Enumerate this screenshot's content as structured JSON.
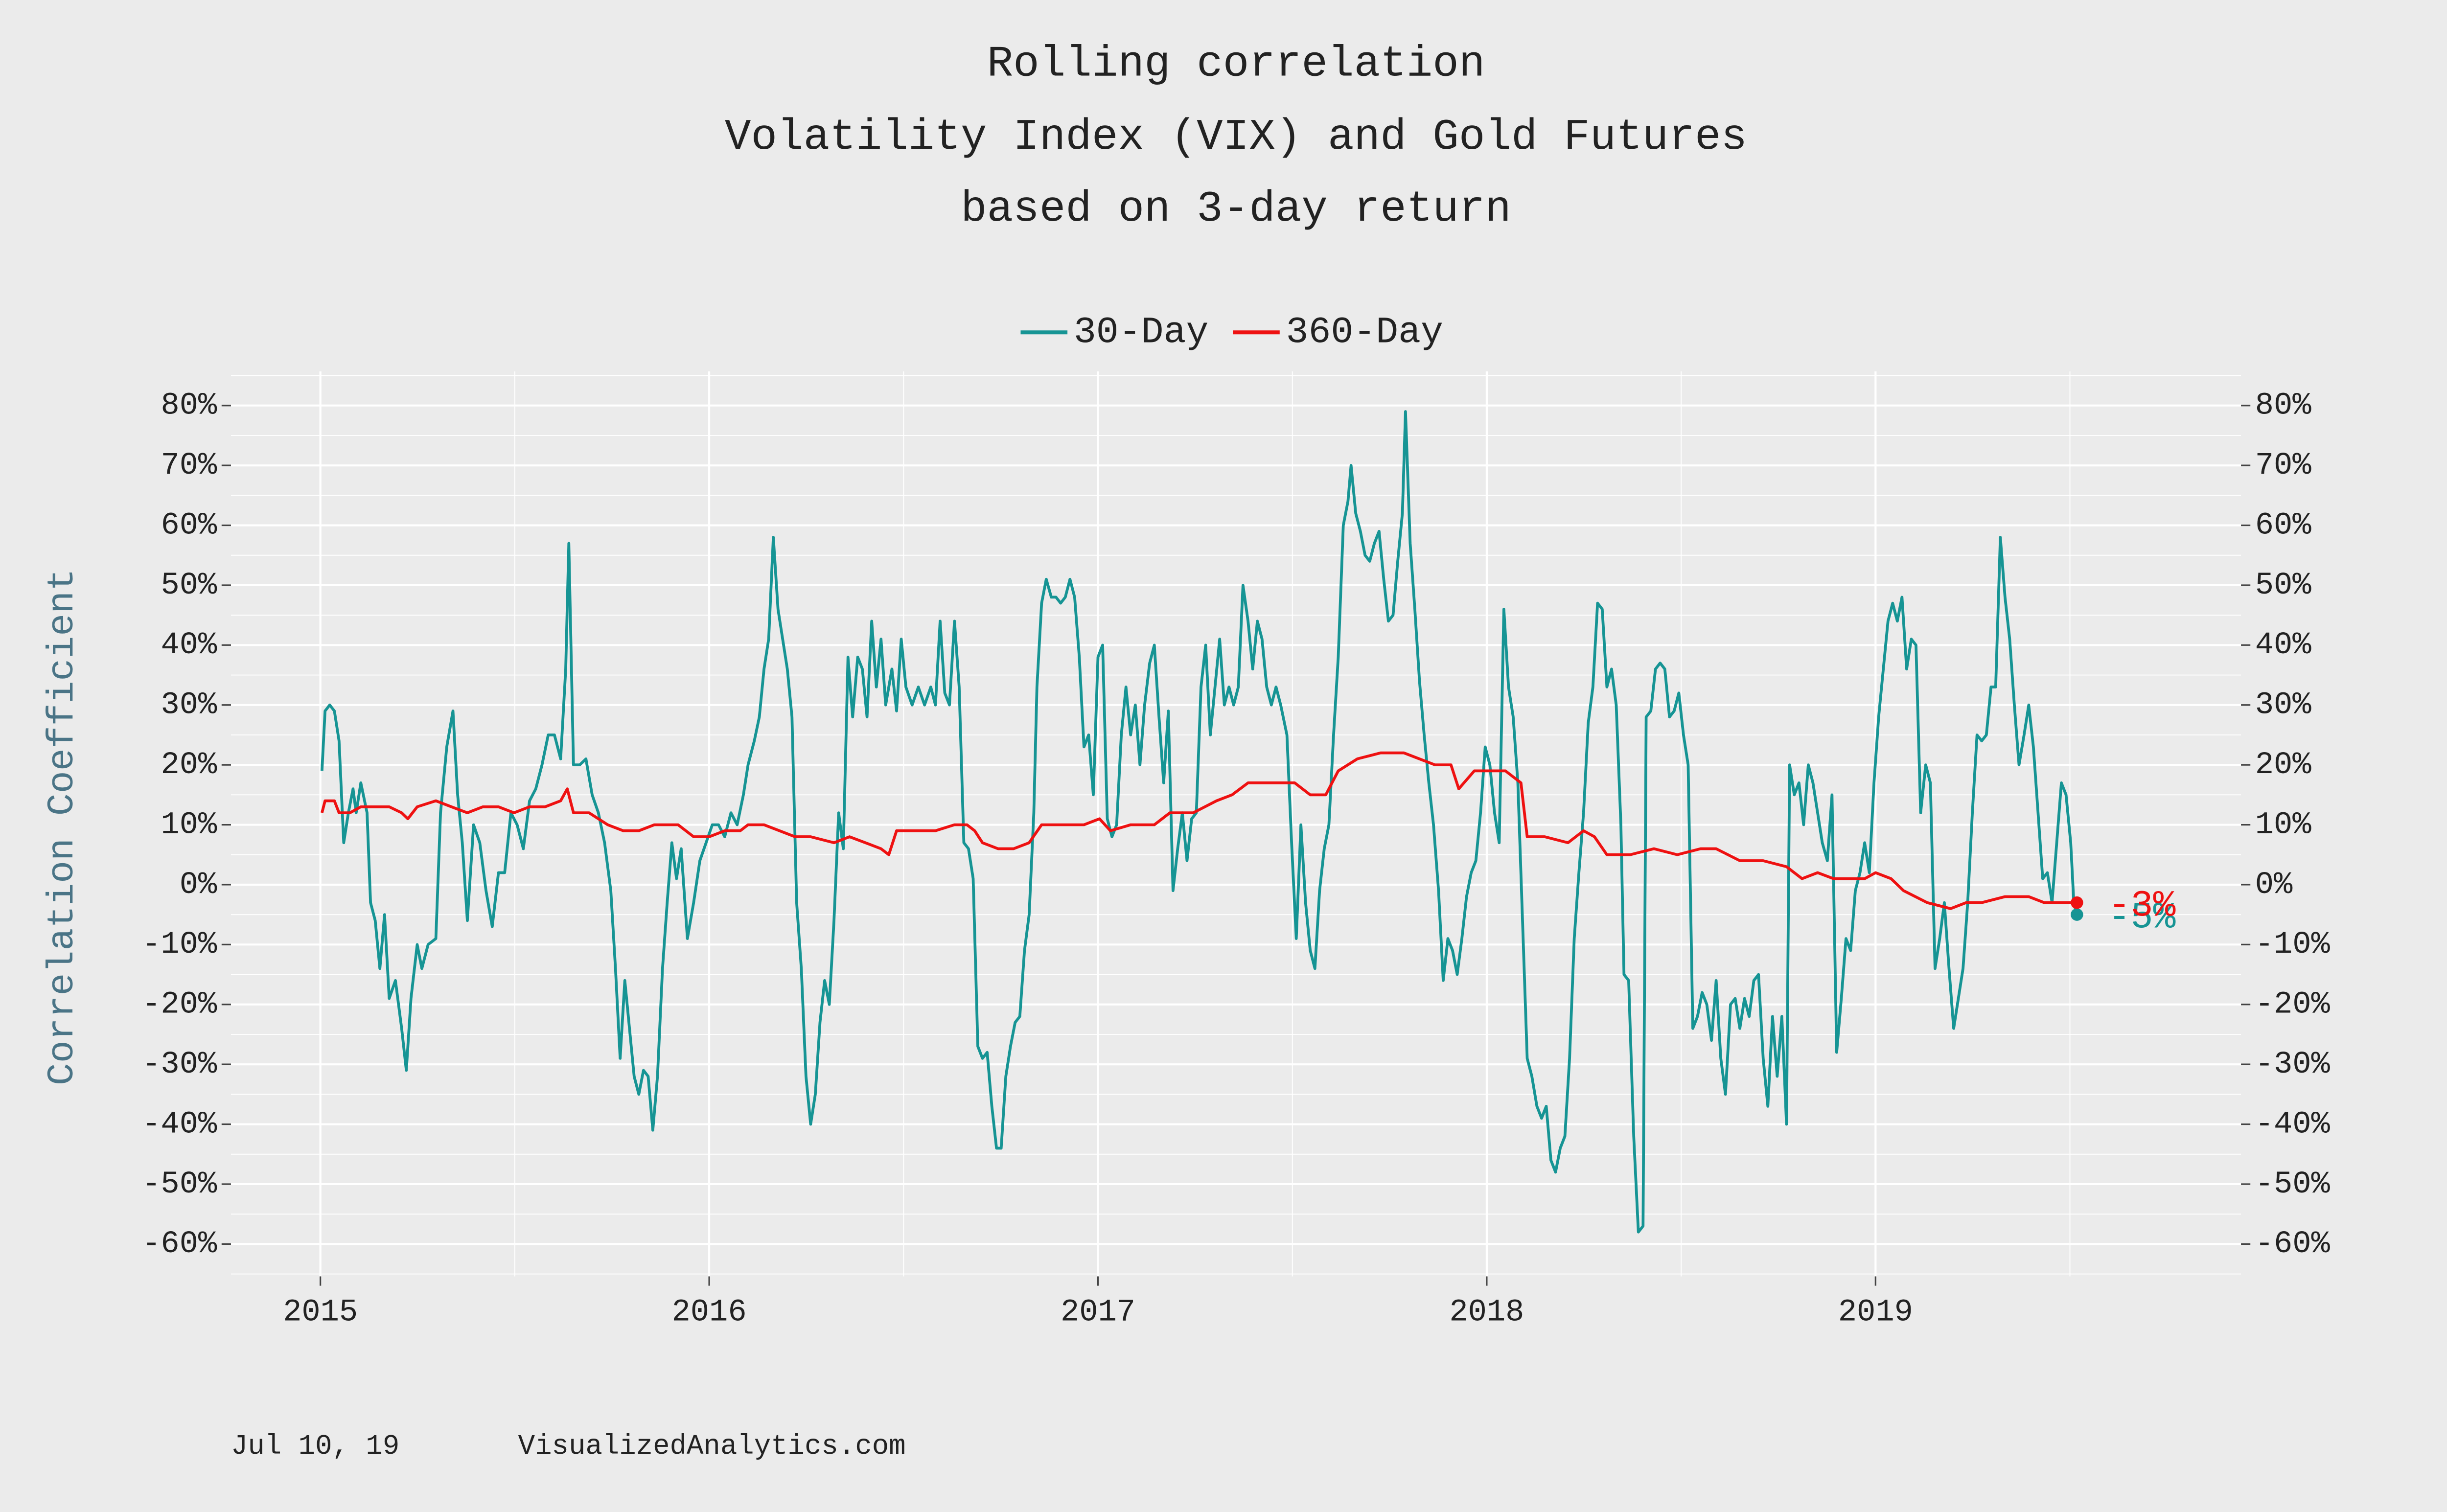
{
  "chart_data": {
    "type": "line",
    "title": [
      "Rolling correlation",
      "Volatility Index (VIX) and Gold Futures",
      "based on 3-day return"
    ],
    "y_label": "Correlation Coefficient",
    "caption": [
      "Jul 10, 19",
      "VisualizedAnalytics.com"
    ],
    "xlim": [
      2014.77,
      2019.94
    ],
    "xticks": [
      2015,
      2016,
      2017,
      2018,
      2019
    ],
    "x_minor_ticks": [
      2015.5,
      2016.5,
      2017.5,
      2018.5,
      2019.5
    ],
    "ylim": [
      -65.4,
      85.7
    ],
    "yticks": [
      {
        "value": -60,
        "label": "-60%"
      },
      {
        "value": -50,
        "label": "-50%"
      },
      {
        "value": -40,
        "label": "-40%"
      },
      {
        "value": -30,
        "label": "-30%"
      },
      {
        "value": -20,
        "label": "-20%"
      },
      {
        "value": -10,
        "label": "-10%"
      },
      {
        "value": 0,
        "label": "0%"
      },
      {
        "value": 10,
        "label": "10%"
      },
      {
        "value": 20,
        "label": "20%"
      },
      {
        "value": 30,
        "label": "30%"
      },
      {
        "value": 40,
        "label": "40%"
      },
      {
        "value": 50,
        "label": "50%"
      },
      {
        "value": 60,
        "label": "60%"
      },
      {
        "value": 70,
        "label": "70%"
      },
      {
        "value": 80,
        "label": "80%"
      }
    ],
    "y_minor_ticks": [
      -65,
      -55,
      -45,
      -35,
      -25,
      -15,
      -5,
      5,
      15,
      25,
      35,
      45,
      55,
      65,
      75,
      85
    ],
    "y2lim": [
      -65.4,
      85.7
    ],
    "y2ticks": [
      {
        "value": -60,
        "label": "-60%"
      },
      {
        "value": -50,
        "label": "-50%"
      },
      {
        "value": -40,
        "label": "-40%"
      },
      {
        "value": -30,
        "label": "-30%"
      },
      {
        "value": -20,
        "label": "-20%"
      },
      {
        "value": -10,
        "label": "-10%"
      },
      {
        "value": 0,
        "label": "0%"
      },
      {
        "value": 10,
        "label": "10%"
      },
      {
        "value": 20,
        "label": "20%"
      },
      {
        "value": 30,
        "label": "30%"
      },
      {
        "value": 40,
        "label": "40%"
      },
      {
        "value": 50,
        "label": "50%"
      },
      {
        "value": 60,
        "label": "60%"
      },
      {
        "value": 70,
        "label": "70%"
      },
      {
        "value": 80,
        "label": "80%"
      }
    ],
    "grid": true,
    "legend": "top",
    "series": [
      {
        "name": "30-Day",
        "color": "#169494",
        "end_label": "-5%",
        "x": [
          2015.004,
          2015.012,
          2015.024,
          2015.036,
          2015.048,
          2015.06,
          2015.072,
          2015.084,
          2015.092,
          2015.104,
          2015.12,
          2015.129,
          2015.141,
          2015.153,
          2015.165,
          2015.177,
          2015.193,
          2015.209,
          2015.221,
          2015.233,
          2015.249,
          2015.261,
          2015.277,
          2015.297,
          2015.309,
          2015.325,
          2015.341,
          2015.353,
          2015.365,
          2015.378,
          2015.394,
          2015.41,
          2015.426,
          2015.442,
          2015.458,
          2015.474,
          2015.49,
          2015.506,
          2015.522,
          2015.538,
          2015.554,
          2015.57,
          2015.586,
          2015.602,
          2015.618,
          2015.631,
          2015.639,
          2015.651,
          2015.667,
          2015.683,
          2015.699,
          2015.715,
          2015.731,
          2015.747,
          2015.759,
          2015.771,
          2015.783,
          2015.795,
          2015.807,
          2015.819,
          2015.831,
          2015.843,
          2015.855,
          2015.867,
          2015.88,
          2015.892,
          2015.904,
          2015.916,
          2015.928,
          2015.944,
          2015.96,
          2015.976,
          2015.992,
          2016.008,
          2016.024,
          2016.04,
          2016.056,
          2016.072,
          2016.088,
          2016.1,
          2016.116,
          2016.129,
          2016.141,
          2016.153,
          2016.165,
          2016.177,
          2016.189,
          2016.201,
          2016.213,
          2016.225,
          2016.237,
          2016.249,
          2016.261,
          2016.273,
          2016.285,
          2016.297,
          2016.309,
          2016.321,
          2016.333,
          2016.345,
          2016.357,
          2016.369,
          2016.382,
          2016.394,
          2016.406,
          2016.418,
          2016.43,
          2016.442,
          2016.454,
          2016.47,
          2016.482,
          2016.494,
          2016.506,
          2016.522,
          2016.538,
          2016.554,
          2016.57,
          2016.582,
          2016.594,
          2016.606,
          2016.618,
          2016.631,
          2016.643,
          2016.655,
          2016.667,
          2016.679,
          2016.691,
          2016.703,
          2016.715,
          2016.727,
          2016.739,
          2016.751,
          2016.763,
          2016.775,
          2016.787,
          2016.799,
          2016.811,
          2016.823,
          2016.835,
          2016.843,
          2016.855,
          2016.867,
          2016.88,
          2016.892,
          2016.904,
          2016.916,
          2016.928,
          2016.94,
          2016.952,
          2016.964,
          2016.976,
          2016.988,
          2017.0,
          2017.012,
          2017.024,
          2017.036,
          2017.048,
          2017.06,
          2017.072,
          2017.084,
          2017.096,
          2017.108,
          2017.12,
          2017.133,
          2017.145,
          2017.157,
          2017.169,
          2017.181,
          2017.193,
          2017.205,
          2017.217,
          2017.229,
          2017.241,
          2017.253,
          2017.265,
          2017.277,
          2017.289,
          2017.301,
          2017.313,
          2017.325,
          2017.337,
          2017.349,
          2017.361,
          2017.373,
          2017.386,
          2017.398,
          2017.41,
          2017.422,
          2017.434,
          2017.446,
          2017.458,
          2017.47,
          2017.486,
          2017.498,
          2017.51,
          2017.522,
          2017.534,
          2017.546,
          2017.558,
          2017.57,
          2017.582,
          2017.594,
          2017.606,
          2017.618,
          2017.631,
          2017.643,
          2017.651,
          2017.663,
          2017.675,
          2017.687,
          2017.699,
          2017.711,
          2017.723,
          2017.735,
          2017.747,
          2017.759,
          2017.771,
          2017.783,
          2017.791,
          2017.803,
          2017.815,
          2017.827,
          2017.839,
          2017.851,
          2017.863,
          2017.876,
          2017.888,
          2017.9,
          2017.912,
          2017.924,
          2017.936,
          2017.948,
          2017.96,
          2017.972,
          2017.984,
          2017.996,
          2018.008,
          2018.02,
          2018.032,
          2018.044,
          2018.056,
          2018.068,
          2018.08,
          2018.092,
          2018.104,
          2018.116,
          2018.129,
          2018.141,
          2018.153,
          2018.165,
          2018.177,
          2018.189,
          2018.201,
          2018.213,
          2018.225,
          2018.237,
          2018.249,
          2018.261,
          2018.273,
          2018.285,
          2018.297,
          2018.309,
          2018.321,
          2018.333,
          2018.345,
          2018.353,
          2018.365,
          2018.378,
          2018.39,
          2018.402,
          2018.41,
          2018.422,
          2018.434,
          2018.446,
          2018.458,
          2018.47,
          2018.482,
          2018.494,
          2018.506,
          2018.518,
          2018.53,
          2018.542,
          2018.554,
          2018.566,
          2018.578,
          2018.59,
          2018.602,
          2018.614,
          2018.627,
          2018.639,
          2018.651,
          2018.663,
          2018.675,
          2018.687,
          2018.699,
          2018.711,
          2018.723,
          2018.735,
          2018.747,
          2018.759,
          2018.771,
          2018.779,
          2018.791,
          2018.803,
          2018.815,
          2018.827,
          2018.839,
          2018.851,
          2018.863,
          2018.876,
          2018.888,
          2018.9,
          2018.912,
          2018.924,
          2018.936,
          2018.948,
          2018.96,
          2018.972,
          2018.984,
          2018.996,
          2019.008,
          2019.02,
          2019.032,
          2019.044,
          2019.056,
          2019.068,
          2019.08,
          2019.092,
          2019.104,
          2019.116,
          2019.129,
          2019.141,
          2019.153,
          2019.165,
          2019.177,
          2019.189,
          2019.201,
          2019.213,
          2019.225,
          2019.237,
          2019.249,
          2019.261,
          2019.273,
          2019.285,
          2019.297,
          2019.309,
          2019.321,
          2019.333,
          2019.345,
          2019.357,
          2019.369,
          2019.382,
          2019.394,
          2019.406,
          2019.418,
          2019.43,
          2019.442,
          2019.454,
          2019.466,
          2019.478,
          2019.49,
          2019.502,
          2019.51,
          2019.518
        ],
        "values": [
          19,
          29,
          30,
          29,
          24,
          7,
          12,
          16,
          12,
          17,
          12,
          -3,
          -6,
          -14,
          -5,
          -19,
          -16,
          -24,
          -31,
          -19,
          -10,
          -14,
          -10,
          -9,
          12,
          23,
          29,
          15,
          7,
          -6,
          10,
          7,
          -1,
          -7,
          2,
          2,
          12,
          10,
          6,
          14,
          16,
          20,
          25,
          25,
          21,
          36,
          57,
          20,
          20,
          21,
          15,
          12,
          7,
          -1,
          -14,
          -29,
          -16,
          -24,
          -32,
          -35,
          -31,
          -32,
          -41,
          -32,
          -14,
          -3,
          7,
          1,
          6,
          -9,
          -3,
          4,
          7,
          10,
          10,
          8,
          12,
          10,
          15,
          20,
          24,
          28,
          36,
          41,
          58,
          46,
          41,
          36,
          28,
          -3,
          -14,
          -32,
          -40,
          -35,
          -23,
          -16,
          -20,
          -6,
          12,
          6,
          38,
          28,
          38,
          36,
          28,
          44,
          33,
          41,
          30,
          36,
          29,
          41,
          33,
          30,
          33,
          30,
          33,
          30,
          44,
          32,
          30,
          44,
          33,
          7,
          6,
          1,
          -27,
          -29,
          -28,
          -37,
          -44,
          -44,
          -32,
          -27,
          -23,
          -22,
          -11,
          -5,
          12,
          33,
          47,
          51,
          48,
          48,
          47,
          48,
          51,
          48,
          38,
          23,
          25,
          15,
          38,
          40,
          11,
          8,
          10,
          25,
          33,
          25,
          30,
          20,
          30,
          37,
          40,
          28,
          17,
          29,
          -1,
          6,
          12,
          4,
          11,
          12,
          33,
          40,
          25,
          33,
          41,
          30,
          33,
          30,
          33,
          50,
          44,
          36,
          44,
          41,
          33,
          30,
          33,
          30,
          25,
          7,
          -9,
          10,
          -3,
          -11,
          -14,
          -1,
          6,
          10,
          25,
          38,
          60,
          64,
          70,
          62,
          59,
          55,
          54,
          57,
          59,
          51,
          44,
          45,
          54,
          62,
          79,
          57,
          46,
          34,
          25,
          17,
          10,
          -1,
          -16,
          -9,
          -11,
          -15,
          -9,
          -2,
          2,
          4,
          12,
          23,
          20,
          12,
          7,
          46,
          33,
          28,
          17,
          -6,
          -29,
          -32,
          -37,
          -39,
          -37,
          -46,
          -48,
          -44,
          -42,
          -29,
          -9,
          2,
          12,
          27,
          33,
          47,
          46,
          33,
          36,
          30,
          10,
          -15,
          -16,
          -42,
          -58,
          -57,
          28,
          29,
          36,
          37,
          36,
          28,
          29,
          32,
          25,
          20,
          -24,
          -22,
          -18,
          -20,
          -26,
          -16,
          -29,
          -35,
          -20,
          -19,
          -24,
          -19,
          -22,
          -16,
          -15,
          -29,
          -37,
          -22,
          -32,
          -22,
          -40,
          20,
          15,
          17,
          10,
          20,
          17,
          12,
          7,
          4,
          15,
          -28,
          -19,
          -9,
          -11,
          -1,
          2,
          7,
          2,
          17,
          28,
          36,
          44,
          47,
          44,
          48,
          36,
          41,
          40,
          12,
          20,
          17,
          -14,
          -9,
          -3,
          -14,
          -24,
          -19,
          -14,
          -3,
          12,
          25,
          24,
          25,
          33,
          33,
          58,
          48,
          41,
          30,
          20,
          25,
          30,
          23,
          12,
          1,
          2,
          -3,
          7,
          17,
          15,
          7,
          -3,
          -5
        ]
      },
      {
        "name": "360-Day",
        "color": "#ee1111",
        "end_label": "-3%",
        "x": [
          2015.004,
          2015.012,
          2015.036,
          2015.048,
          2015.076,
          2015.104,
          2015.137,
          2015.177,
          2015.209,
          2015.225,
          2015.249,
          2015.297,
          2015.337,
          2015.378,
          2015.418,
          2015.458,
          2015.498,
          2015.538,
          2015.578,
          2015.618,
          2015.635,
          2015.651,
          2015.691,
          2015.739,
          2015.779,
          2015.819,
          2015.859,
          2015.92,
          2015.96,
          2016.0,
          2016.04,
          2016.08,
          2016.1,
          2016.141,
          2016.181,
          2016.221,
          2016.261,
          2016.321,
          2016.361,
          2016.402,
          2016.442,
          2016.462,
          2016.482,
          2016.522,
          2016.582,
          2016.631,
          2016.663,
          2016.683,
          2016.703,
          2016.743,
          2016.783,
          2016.823,
          2016.855,
          2016.904,
          2016.964,
          2017.004,
          2017.032,
          2017.084,
          2017.145,
          2017.185,
          2017.245,
          2017.305,
          2017.345,
          2017.386,
          2017.446,
          2017.506,
          2017.546,
          2017.586,
          2017.618,
          2017.667,
          2017.727,
          2017.787,
          2017.827,
          2017.867,
          2017.908,
          2017.928,
          2017.968,
          2018.008,
          2018.048,
          2018.088,
          2018.104,
          2018.149,
          2018.209,
          2018.249,
          2018.277,
          2018.309,
          2018.369,
          2018.43,
          2018.49,
          2018.55,
          2018.59,
          2018.651,
          2018.711,
          2018.771,
          2018.811,
          2018.851,
          2018.892,
          2018.932,
          2018.972,
          2019.0,
          2019.04,
          2019.072,
          2019.133,
          2019.193,
          2019.233,
          2019.273,
          2019.333,
          2019.394,
          2019.434,
          2019.474,
          2019.518
        ],
        "values": [
          12,
          14,
          14,
          12,
          12,
          13,
          13,
          13,
          12,
          11,
          13,
          14,
          13,
          12,
          13,
          13,
          12,
          13,
          13,
          14,
          16,
          12,
          12,
          10,
          9,
          9,
          10,
          10,
          8,
          8,
          9,
          9,
          10,
          10,
          9,
          8,
          8,
          7,
          8,
          7,
          6,
          5,
          9,
          9,
          9,
          10,
          10,
          9,
          7,
          6,
          6,
          7,
          10,
          10,
          10,
          11,
          9,
          10,
          10,
          12,
          12,
          14,
          15,
          17,
          17,
          17,
          15,
          15,
          19,
          21,
          22,
          22,
          21,
          20,
          20,
          16,
          19,
          19,
          19,
          17,
          8,
          8,
          7,
          9,
          8,
          5,
          5,
          6,
          5,
          6,
          6,
          4,
          4,
          3,
          1,
          2,
          1,
          1,
          1,
          2,
          1,
          -1,
          -3,
          -4,
          -3,
          -3,
          -2,
          -2,
          -3,
          -3,
          -3
        ]
      }
    ]
  }
}
